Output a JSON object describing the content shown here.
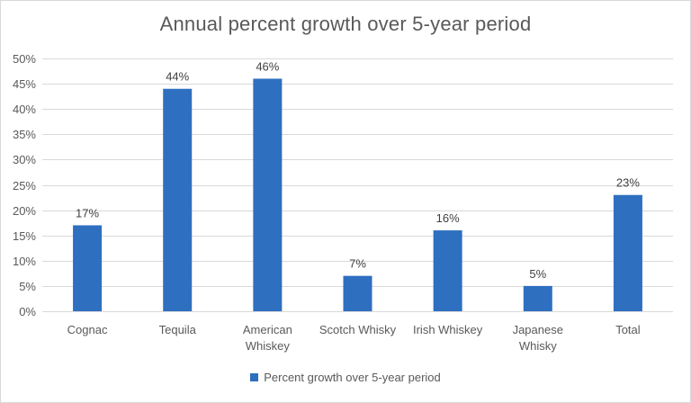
{
  "chart_data": {
    "type": "bar",
    "title": "Annual percent growth over 5-year period",
    "xlabel": "",
    "ylabel": "",
    "categories": [
      "Cognac",
      "Tequila",
      "American Whiskey",
      "Scotch Whisky",
      "Irish Whiskey",
      "Japanese Whisky",
      "Total"
    ],
    "category_lines": [
      [
        "Cognac"
      ],
      [
        "Tequila"
      ],
      [
        "American",
        "Whiskey"
      ],
      [
        "Scotch Whisky"
      ],
      [
        "Irish Whiskey"
      ],
      [
        "Japanese",
        "Whisky"
      ],
      [
        "Total"
      ]
    ],
    "series": [
      {
        "name": "Percent growth over 5-year period",
        "values": [
          17,
          44,
          46,
          7,
          16,
          5,
          23
        ],
        "labels": [
          "17%",
          "44%",
          "46%",
          "7%",
          "16%",
          "5%",
          "23%"
        ],
        "color": "#2e6fc0"
      }
    ],
    "ylim": [
      0,
      50
    ],
    "yticks": [
      0,
      5,
      10,
      15,
      20,
      25,
      30,
      35,
      40,
      45,
      50
    ],
    "ytick_labels": [
      "0%",
      "5%",
      "10%",
      "15%",
      "20%",
      "25%",
      "30%",
      "35%",
      "40%",
      "45%",
      "50%"
    ],
    "grid": true,
    "gridline_color": "#d9d9d9",
    "legend_position": "bottom"
  }
}
